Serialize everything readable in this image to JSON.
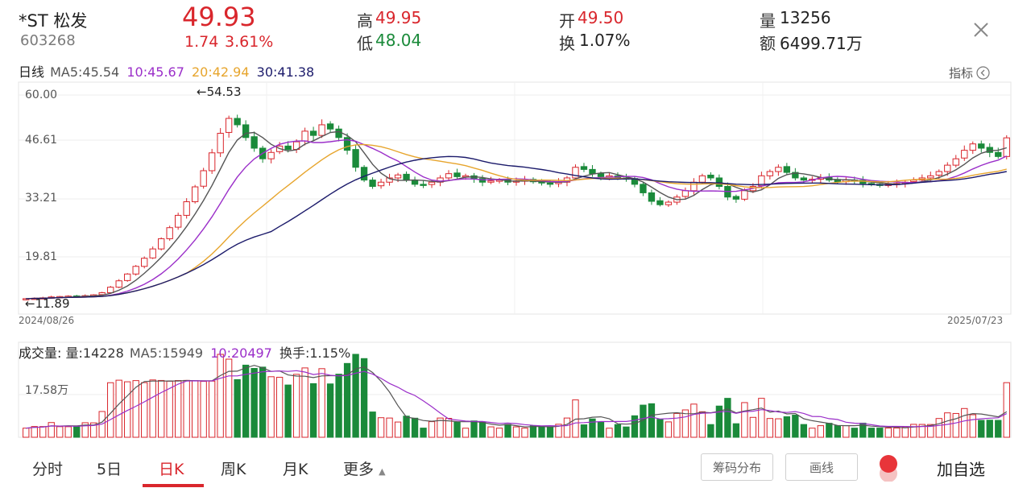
{
  "header": {
    "name": "*ST 松发",
    "code": "603268",
    "price": "49.93",
    "change": "1.74",
    "change_pct": "3.61%",
    "high_label": "高",
    "high": "49.95",
    "low_label": "低",
    "low": "48.04",
    "open_label": "开",
    "open": "49.50",
    "turnover_label": "换",
    "turnover": "1.07%",
    "volume_label": "量",
    "volume": "13256",
    "amount_label": "额",
    "amount": "6499.71万"
  },
  "kline": {
    "period_label": "日线",
    "ma5": "MA5:45.54",
    "ma10": "10:45.67",
    "ma20": "20:42.94",
    "ma30": "30:41.38",
    "indicator_label": "指标",
    "y_ticks": [
      "60.00",
      "46.61",
      "33.21",
      "19.81"
    ],
    "high_marker": "←54.53",
    "low_marker": "←11.89",
    "start_date": "2024/08/26",
    "end_date": "2025/07/23"
  },
  "volume_panel": {
    "label": "成交量:",
    "vol": "量:14228",
    "ma5": "MA5:15949",
    "ma10": "10:20497",
    "turnover": "换手:1.15%",
    "y_tick": "17.58万"
  },
  "tabs": [
    "分时",
    "5日",
    "日K",
    "周K",
    "月K",
    "更多"
  ],
  "active_tab": "日K",
  "buttons": {
    "chips": "筹码分布",
    "draw": "画线",
    "add_watch": "加自选"
  },
  "colors": {
    "up": "#d9262c",
    "down": "#1a8a3a",
    "ma5": "#555555",
    "ma10": "#9b2fc9",
    "ma20": "#e7a52d",
    "ma30": "#1c1b6b"
  },
  "chart_data": {
    "type": "candlestick",
    "ylim": [
      11.89,
      60.0
    ],
    "x_range": [
      "2024/08/26",
      "2025/07/23"
    ],
    "close_series": [
      12.1,
      12.2,
      12.3,
      12.5,
      12.6,
      12.7,
      12.6,
      12.8,
      13.0,
      13.5,
      14.8,
      16.3,
      17.9,
      19.7,
      21.6,
      23.8,
      26.2,
      28.8,
      31.7,
      34.9,
      38.4,
      42.2,
      46.4,
      51.0,
      54.5,
      53.0,
      50.0,
      47.5,
      45.0,
      46.5,
      48.0,
      47.2,
      49.0,
      51.5,
      50.5,
      53.0,
      52.0,
      50.0,
      47.0,
      43.0,
      40.0,
      38.5,
      39.5,
      40.5,
      41.2,
      40.0,
      39.0,
      38.8,
      39.5,
      40.5,
      41.5,
      40.8,
      41.0,
      40.2,
      39.5,
      39.8,
      40.0,
      39.5,
      39.8,
      40.0,
      39.6,
      39.3,
      39.0,
      39.5,
      40.5,
      43.0,
      42.5,
      41.5,
      40.8,
      41.0,
      40.5,
      40.2,
      39.0,
      37.0,
      35.0,
      34.2,
      34.8,
      36.0,
      37.5,
      39.5,
      41.0,
      40.5,
      38.5,
      36.0,
      35.5,
      37.5,
      38.5,
      41.0,
      42.0,
      43.0,
      41.8,
      40.5,
      40.0,
      40.2,
      40.6,
      40.0,
      39.6,
      40.0,
      39.8,
      39.2,
      39.0,
      38.8,
      39.0,
      39.2,
      39.5,
      40.0,
      40.5,
      41.0,
      42.0,
      43.5,
      45.0,
      47.0,
      48.5,
      47.5,
      46.5,
      45.54,
      49.93
    ]
  }
}
